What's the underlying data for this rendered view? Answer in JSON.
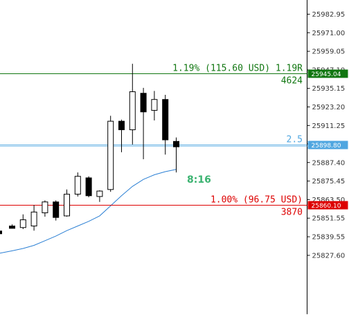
{
  "chart_data": {
    "type": "candlestick",
    "y_axis": {
      "ticks": [
        "25982.95",
        "25971.00",
        "25959.05",
        "25947.10",
        "25935.15",
        "25923.20",
        "25911.25",
        "25899.35",
        "25887.40",
        "25875.45",
        "25863.50",
        "25851.55",
        "25839.55",
        "25827.60"
      ],
      "tick_values": [
        25982.95,
        25971.0,
        25959.05,
        25947.1,
        25935.15,
        25923.2,
        25911.25,
        25899.35,
        25887.4,
        25875.45,
        25863.5,
        25851.55,
        25839.55,
        25827.6
      ]
    },
    "candles": [
      {
        "open": 25846.5,
        "high": 25847.5,
        "low": 25845.5,
        "close": 25845.0,
        "bearish": true
      },
      {
        "open": 25845.5,
        "high": 25854.0,
        "low": 25844.5,
        "close": 25850.5
      },
      {
        "open": 25846.5,
        "high": 25860.0,
        "low": 25843.5,
        "close": 25855.5
      },
      {
        "open": 25855.0,
        "high": 25863.0,
        "low": 25852.5,
        "close": 25862.0
      },
      {
        "open": 25862.0,
        "high": 25863.0,
        "low": 25850.0,
        "close": 25852.0,
        "bearish": true
      },
      {
        "open": 25853.0,
        "high": 25870.0,
        "low": 25852.5,
        "close": 25867.0
      },
      {
        "open": 25867.0,
        "high": 25881.0,
        "low": 25865.5,
        "close": 25878.5
      },
      {
        "open": 25877.5,
        "high": 25878.5,
        "low": 25865.0,
        "close": 25866.0,
        "bearish": true
      },
      {
        "open": 25865.5,
        "high": 25869.5,
        "low": 25862.0,
        "close": 25869.0
      },
      {
        "open": 25870.0,
        "high": 25917.5,
        "low": 25868.5,
        "close": 25914.0
      },
      {
        "open": 25914.0,
        "high": 25915.0,
        "low": 25894.0,
        "close": 25908.5,
        "bearish": true
      },
      {
        "open": 25908.5,
        "high": 25951.0,
        "low": 25899.0,
        "close": 25933.0
      },
      {
        "open": 25932.0,
        "high": 25935.5,
        "low": 25889.5,
        "close": 25920.0,
        "bearish": true
      },
      {
        "open": 25921.0,
        "high": 25933.5,
        "low": 25914.5,
        "close": 25928.0
      },
      {
        "open": 25928.0,
        "high": 25931.0,
        "low": 25892.5,
        "close": 25902.0,
        "bearish": true
      },
      {
        "open": 25901.0,
        "high": 25903.5,
        "low": 25881.0,
        "close": 25897.5,
        "bearish": true
      }
    ],
    "moving_average": {
      "color": "#2a7fd4",
      "values": [
        25830.5,
        25832.0,
        25834.0,
        25837.0,
        25840.0,
        25843.5,
        25846.5,
        25849.5,
        25853.0,
        25859.5,
        25866.0,
        25872.0,
        25876.5,
        25879.5,
        25881.5,
        25883.0
      ]
    },
    "levels": [
      {
        "kind": "take-profit",
        "price": 25945.04,
        "tag": "25945.04",
        "text": "1.19% (115.60 USD) 1.19R",
        "sub": "4624",
        "color": "#117711"
      },
      {
        "kind": "current",
        "price": 25898.8,
        "tag": "25898.80",
        "text": "2.5",
        "color": "#4fa6e0"
      },
      {
        "kind": "stop-loss",
        "price": 25860.1,
        "tag": "25860.10",
        "text": "1.00% (96.75 USD)",
        "sub": "3870",
        "color": "#dd0000"
      }
    ],
    "timer": "8:16"
  }
}
